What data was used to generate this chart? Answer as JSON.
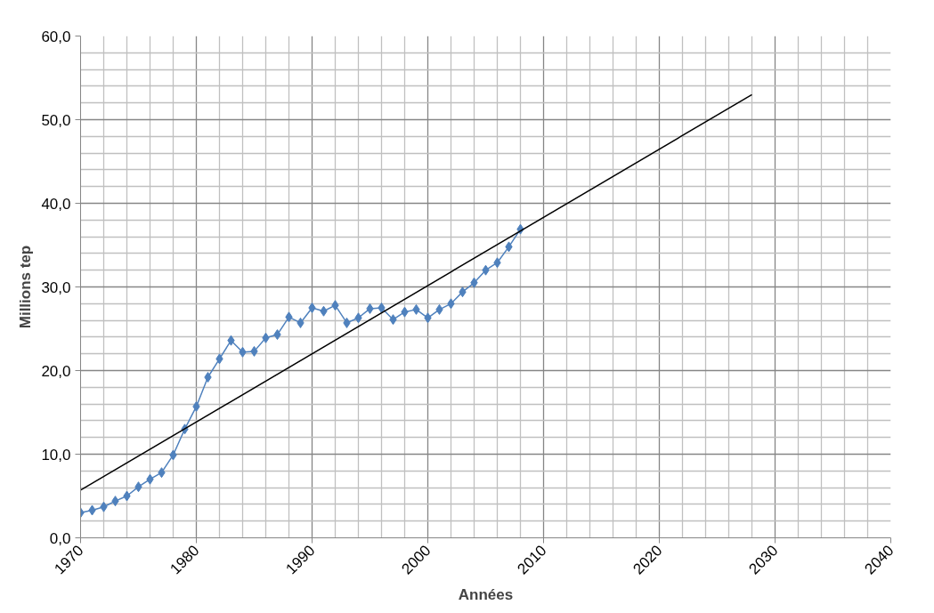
{
  "chart_data": {
    "type": "line",
    "xlabel": "Années",
    "ylabel": "Millions tep",
    "xlim": [
      1970,
      2040
    ],
    "xticks": [
      1970,
      1980,
      1990,
      2000,
      2010,
      2020,
      2030,
      2040
    ],
    "ylim": [
      0,
      60
    ],
    "yticks": [
      {
        "value": 0,
        "label": "0,0"
      },
      {
        "value": 10,
        "label": "10,0"
      },
      {
        "value": 20,
        "label": "20,0"
      },
      {
        "value": 30,
        "label": "30,0"
      },
      {
        "value": 40,
        "label": "40,0"
      },
      {
        "value": 50,
        "label": "50,0"
      },
      {
        "value": 60,
        "label": "60,0"
      }
    ],
    "grid": true,
    "series": [
      {
        "color": "#4f81bd",
        "marker": "diamond",
        "x": [
          1970,
          1971,
          1972,
          1973,
          1974,
          1975,
          1976,
          1977,
          1978,
          1979,
          1980,
          1981,
          1982,
          1983,
          1984,
          1985,
          1986,
          1987,
          1988,
          1989,
          1990,
          1991,
          1992,
          1993,
          1994,
          1995,
          1996,
          1997,
          1998,
          1999,
          2000,
          2001,
          2002,
          2003,
          2004,
          2005,
          2006,
          2007,
          2008
        ],
        "values": [
          3.0,
          3.3,
          3.7,
          4.4,
          5.0,
          6.1,
          7.0,
          7.8,
          9.9,
          13.0,
          15.7,
          19.2,
          21.4,
          23.6,
          22.2,
          22.3,
          23.9,
          24.3,
          26.4,
          25.7,
          27.5,
          27.1,
          27.8,
          25.7,
          26.3,
          27.4,
          27.5,
          26.1,
          27.0,
          27.3,
          26.3,
          27.3,
          28.0,
          29.4,
          30.5,
          32.0,
          32.9,
          34.8,
          36.9
        ]
      },
      {
        "color": "#000000",
        "marker": "none",
        "x": [
          1970,
          2028
        ],
        "values": [
          5.7,
          53.0
        ]
      }
    ]
  }
}
